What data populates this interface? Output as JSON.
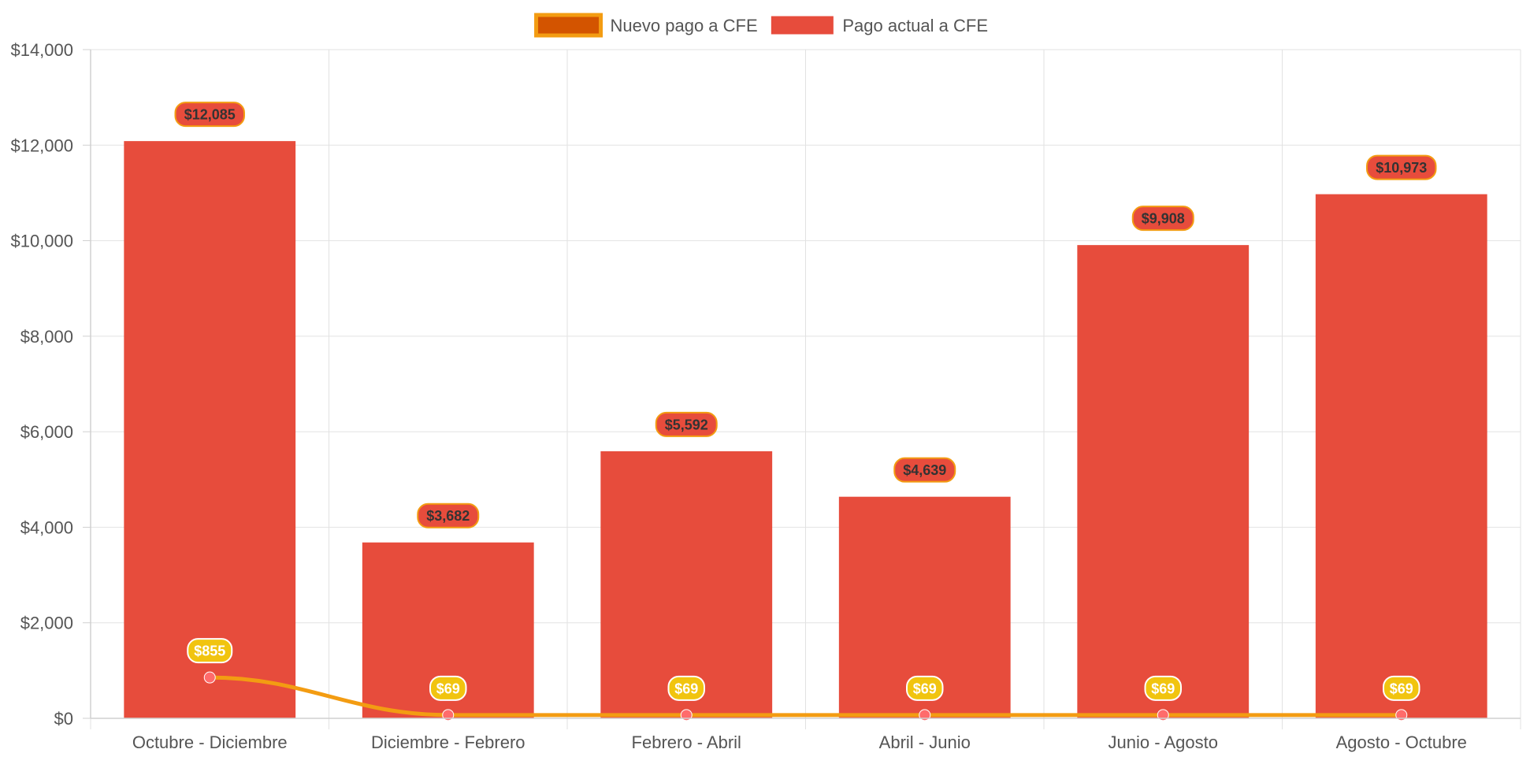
{
  "chart_data": {
    "type": "bar",
    "categories": [
      "Octubre - Diciembre",
      "Diciembre - Febrero",
      "Febrero - Abril",
      "Abril - Junio",
      "Junio - Agosto",
      "Agosto - Octubre"
    ],
    "series": [
      {
        "name": "Nuevo pago a CFE",
        "type": "line",
        "values": [
          855,
          69,
          69,
          69,
          69,
          69
        ],
        "labels": [
          "$855",
          "$69",
          "$69",
          "$69",
          "$69",
          "$69"
        ],
        "color": "#f39c12",
        "point_color": "#ff6b6b",
        "label_bg": "#f1c40f"
      },
      {
        "name": "Pago actual a CFE",
        "type": "bar",
        "values": [
          12085,
          3682,
          5592,
          4639,
          9908,
          10973
        ],
        "labels": [
          "$12,085",
          "$3,682",
          "$5,592",
          "$4,639",
          "$9,908",
          "$10,973"
        ],
        "color": "#e74c3c",
        "label_border": "#f39c12"
      }
    ],
    "ylim": [
      0,
      14000
    ],
    "yticks": [
      0,
      2000,
      4000,
      6000,
      8000,
      10000,
      12000,
      14000
    ],
    "ytick_labels": [
      "$0",
      "$2,000",
      "$4,000",
      "$6,000",
      "$8,000",
      "$10,000",
      "$12,000",
      "$14,000"
    ],
    "title": "",
    "xlabel": "",
    "ylabel": "",
    "grid": true,
    "legend": "top-center"
  }
}
